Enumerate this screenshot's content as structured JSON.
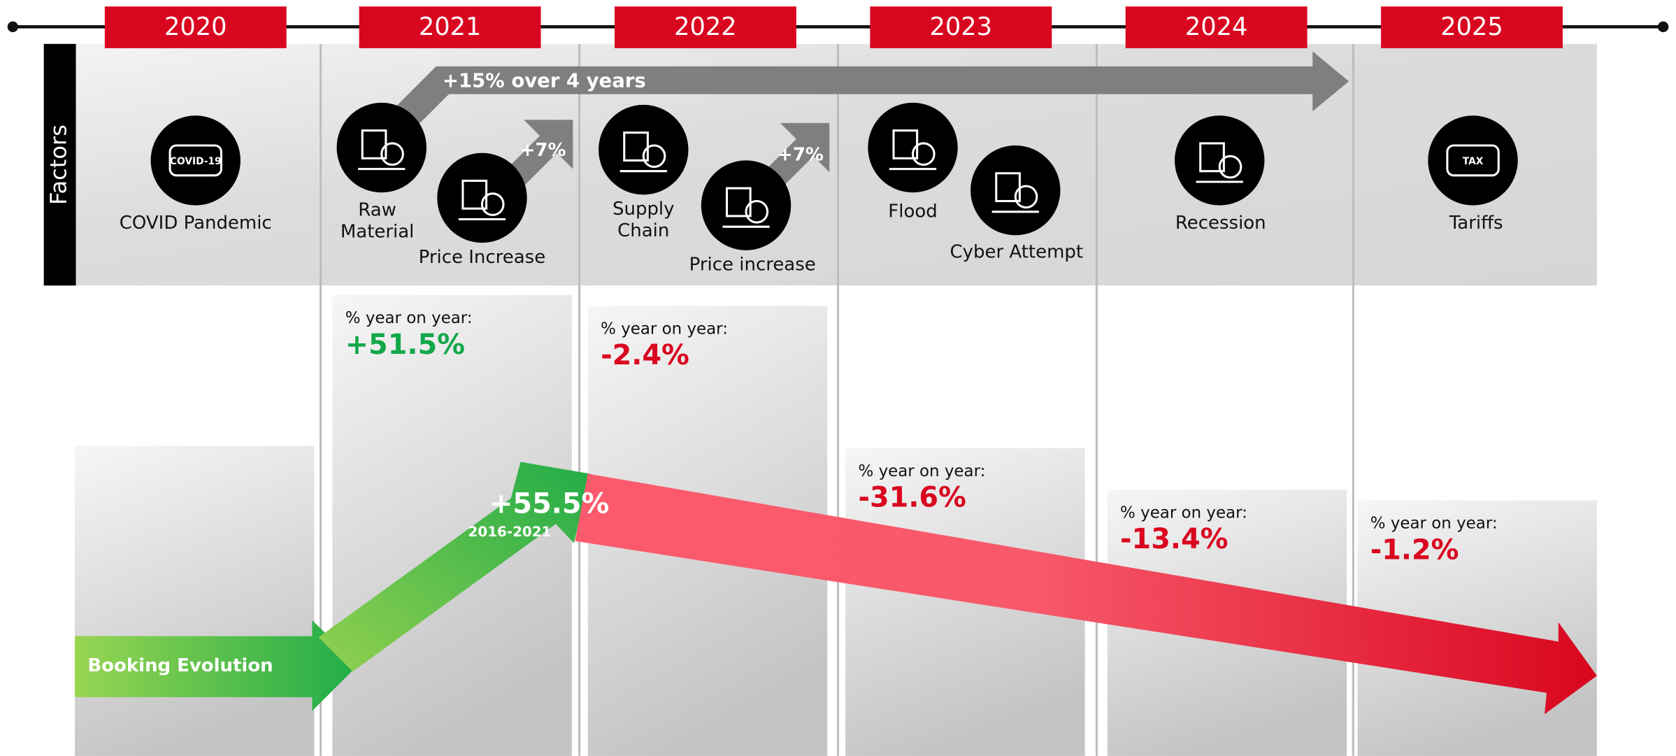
{
  "years": [
    "2020",
    "2021",
    "2022",
    "2023",
    "2024",
    "2025"
  ],
  "factors_label": "Factors",
  "trend_arrow": "+15% over 4 years",
  "small_arrows": [
    "+7%",
    "+7%"
  ],
  "factors": [
    {
      "lines": [
        "COVID Pandemic"
      ],
      "icon_text": "COVID-19"
    },
    {
      "lines": [
        "Raw",
        "Material"
      ]
    },
    {
      "lines": [
        "Price Increase"
      ]
    },
    {
      "lines": [
        "Supply",
        "Chain"
      ]
    },
    {
      "lines": [
        "Price increase"
      ]
    },
    {
      "lines": [
        "Flood"
      ]
    },
    {
      "lines": [
        "Cyber Attempt"
      ]
    },
    {
      "lines": [
        "Recession"
      ]
    },
    {
      "lines": [
        "Tariffs"
      ],
      "icon_text": "TAX"
    }
  ],
  "yoy": [
    {
      "label": "% year on year:",
      "value": "+51.5%",
      "color": "#12a84a"
    },
    {
      "label": "% year on year:",
      "value": "-2.4%",
      "color": "#d9061f"
    },
    {
      "label": "% year on year:",
      "value": "-31.6%",
      "color": "#d9061f"
    },
    {
      "label": "% year on year:",
      "value": "-13.4%",
      "color": "#d9061f"
    },
    {
      "label": "% year on year:",
      "value": "-1.2%",
      "color": "#d9061f"
    }
  ],
  "booking": {
    "label": "Booking Evolution",
    "growth": "+55.5%",
    "period": "2016-2021"
  }
}
